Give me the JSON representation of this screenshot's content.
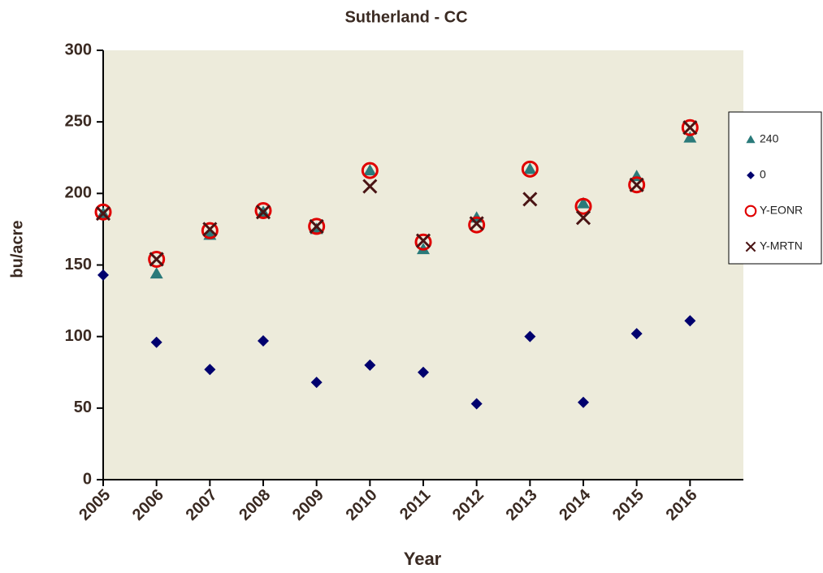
{
  "chart_data": {
    "type": "scatter",
    "title": "Sutherland - CC",
    "xlabel": "Year",
    "ylabel": "bu/acre",
    "x": [
      2005,
      2006,
      2007,
      2008,
      2009,
      2010,
      2011,
      2012,
      2013,
      2014,
      2015,
      2016
    ],
    "xlim": [
      2005,
      2017
    ],
    "xticks": [
      2005,
      2006,
      2007,
      2008,
      2009,
      2010,
      2011,
      2012,
      2013,
      2014,
      2015,
      2016
    ],
    "ylim": [
      0,
      300
    ],
    "yticks": [
      0,
      50,
      100,
      150,
      200,
      250,
      300
    ],
    "grid": false,
    "legend": "right",
    "series": [
      {
        "name": "240",
        "color": "#2a7a7a",
        "marker": "triangle",
        "values": [
          186,
          144,
          171,
          187,
          175,
          216,
          161,
          183,
          217,
          193,
          212,
          239
        ]
      },
      {
        "name": "0",
        "color": "#00006e",
        "marker": "diamond",
        "values": [
          143,
          96,
          77,
          97,
          68,
          80,
          75,
          53,
          100,
          54,
          102,
          111
        ]
      },
      {
        "name": "Y-EONR",
        "color": "#e00000",
        "marker": "circle",
        "values": [
          187,
          154,
          174,
          188,
          177,
          216,
          166,
          178,
          217,
          191,
          206,
          246
        ]
      },
      {
        "name": "Y-MRTN",
        "color": "#4a1414",
        "marker": "x",
        "values": [
          186,
          154,
          175,
          187,
          177,
          205,
          167,
          179,
          196,
          183,
          206,
          246
        ]
      }
    ]
  }
}
